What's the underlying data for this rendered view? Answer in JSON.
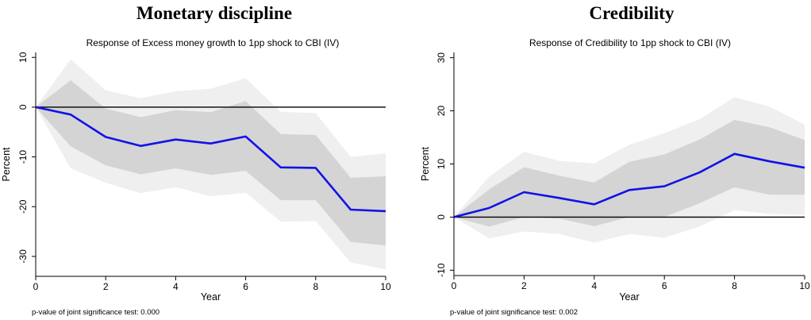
{
  "chart_data": [
    {
      "type": "line",
      "heading": "Monetary discipline",
      "title": "Response of Excess money growth to 1pp shock to CBI (IV)",
      "xlabel": "Year",
      "ylabel": "Percent",
      "note": "p-value of joint significance test: 0.000",
      "xlim": [
        0,
        10
      ],
      "ylim": [
        -34,
        11
      ],
      "x_ticks": [
        0,
        2,
        4,
        6,
        8,
        10
      ],
      "y_ticks": [
        10,
        0,
        -10,
        -20,
        -30
      ],
      "grid": false,
      "legend": "none",
      "reference_line": 0,
      "x": [
        0,
        1,
        2,
        3,
        4,
        5,
        6,
        7,
        8,
        9,
        10
      ],
      "series": [
        {
          "values": [
            0,
            -1.5,
            -6.0,
            -7.8,
            -6.5,
            -7.3,
            -5.9,
            -12.1,
            -12.2,
            -20.6,
            -20.9
          ]
        }
      ],
      "bands": [
        {
          "lower": [
            0,
            -12.3,
            -15.2,
            -17.3,
            -16.1,
            -17.9,
            -17.2,
            -23.0,
            -22.9,
            -31.2,
            -32.6
          ],
          "upper": [
            0,
            9.6,
            3.4,
            1.8,
            3.2,
            3.7,
            5.8,
            -0.9,
            -1.2,
            -10.0,
            -9.3
          ]
        },
        {
          "lower": [
            0,
            -7.9,
            -11.7,
            -13.5,
            -12.3,
            -13.6,
            -12.8,
            -18.7,
            -18.7,
            -27.1,
            -27.8
          ],
          "upper": [
            0,
            5.4,
            -0.3,
            -2.0,
            -0.6,
            -1.0,
            1.2,
            -5.4,
            -5.6,
            -14.2,
            -13.9
          ]
        }
      ],
      "colors": {
        "line": "#1212e6",
        "inner_band": "#d4d4d4",
        "outer_band": "#efefef",
        "reference": "#000000"
      }
    },
    {
      "type": "line",
      "heading": "Credibility",
      "title": "Response of Credibility to 1pp shock to CBI (IV)",
      "xlabel": "Year",
      "ylabel": "Percent",
      "note": "p-value of joint significance test: 0.002",
      "xlim": [
        0,
        10
      ],
      "ylim": [
        -11,
        31
      ],
      "x_ticks": [
        0,
        2,
        4,
        6,
        8,
        10
      ],
      "y_ticks": [
        30,
        20,
        10,
        0,
        -10
      ],
      "grid": false,
      "legend": "none",
      "reference_line": 0,
      "x": [
        0,
        1,
        2,
        3,
        4,
        5,
        6,
        7,
        8,
        9,
        10
      ],
      "series": [
        {
          "values": [
            0,
            1.7,
            4.7,
            3.6,
            2.4,
            5.1,
            5.8,
            8.4,
            11.9,
            10.5,
            9.3
          ]
        }
      ],
      "bands": [
        {
          "lower": [
            0,
            -4.0,
            -2.7,
            -3.2,
            -4.8,
            -3.2,
            -3.9,
            -1.8,
            1.3,
            0.6,
            0.4
          ],
          "upper": [
            0,
            7.6,
            12.3,
            10.6,
            10.1,
            13.6,
            15.8,
            18.4,
            22.6,
            20.8,
            17.4
          ]
        },
        {
          "lower": [
            0,
            -1.8,
            0.0,
            -0.3,
            -1.7,
            0.0,
            0.0,
            2.6,
            5.6,
            4.2,
            4.2
          ],
          "upper": [
            0,
            5.2,
            9.4,
            7.8,
            6.5,
            10.4,
            11.8,
            14.6,
            18.3,
            16.9,
            14.5
          ]
        }
      ],
      "colors": {
        "line": "#1212e6",
        "inner_band": "#d4d4d4",
        "outer_band": "#efefef",
        "reference": "#000000"
      }
    }
  ]
}
